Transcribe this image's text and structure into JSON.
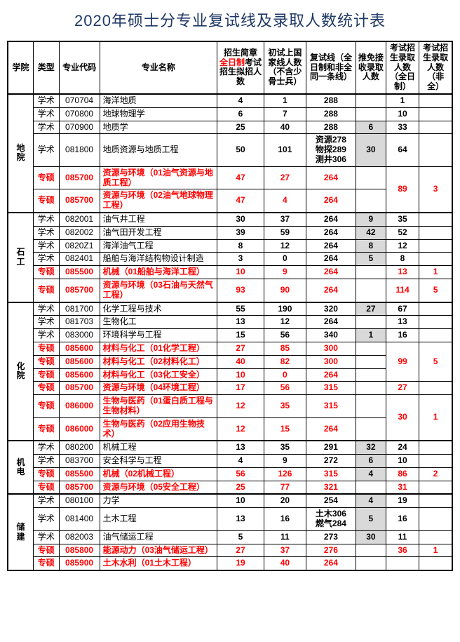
{
  "title": "2020年硕士分专业复试线及录取人数统计表",
  "headers": {
    "c1": "学院",
    "c2": "类型",
    "c3": "专业代码",
    "c4": "专业名称",
    "c5_a": "招生简章",
    "c5_b": "全日制",
    "c5_c": "考试招生拟招人数",
    "c6": "初试上国家线人数（不含少骨士兵）",
    "c7": "复试线（全日制和非全同一条线）",
    "c8": "推免接收录取人数",
    "c9": "考试招生录取人数（全日制）",
    "c10": "考试招生录取人数（非全）"
  },
  "colleges": [
    {
      "name": "地院",
      "rows": [
        {
          "type": "学术",
          "code": "070704",
          "major": "海洋地质",
          "plan": "4",
          "line": "1",
          "cut": "288",
          "tm": "",
          "ft": "1",
          "pt": "",
          "red": false
        },
        {
          "type": "学术",
          "code": "070800",
          "major": "地球物理学",
          "plan": "6",
          "line": "7",
          "cut": "288",
          "tm": "",
          "ft": "10",
          "pt": "",
          "red": false
        },
        {
          "type": "学术",
          "code": "070900",
          "major": "地质学",
          "plan": "25",
          "line": "40",
          "cut": "288",
          "tm": "6",
          "ft": "33",
          "pt": "",
          "red": false,
          "tmShade": true
        },
        {
          "type": "学术",
          "code": "081800",
          "major": "地质资源与地质工程",
          "plan": "50",
          "line": "101",
          "cut": "资源278\n物探289\n测井306",
          "tm": "30",
          "ft": "64",
          "pt": "",
          "red": false,
          "tmShade": true
        },
        {
          "type": "专硕",
          "code": "085700",
          "major": "资源与环境（01油气资源与地质工程）",
          "plan": "47",
          "line": "27",
          "cut": "264",
          "tm": "",
          "ft": "89",
          "pt": "3",
          "red": true,
          "ftSpan": 2,
          "ptSpan": 2
        },
        {
          "type": "专硕",
          "code": "085700",
          "major": "资源与环境（02油气地球物理工程）",
          "plan": "47",
          "line": "4",
          "cut": "264",
          "tm": "",
          "red": true,
          "ftSkip": true,
          "ptSkip": true
        }
      ]
    },
    {
      "name": "石工",
      "rows": [
        {
          "type": "学术",
          "code": "082001",
          "major": "油气井工程",
          "plan": "30",
          "line": "37",
          "cut": "264",
          "tm": "9",
          "ft": "35",
          "pt": "",
          "red": false,
          "tmShade": true
        },
        {
          "type": "学术",
          "code": "082002",
          "major": "油气田开发工程",
          "plan": "39",
          "line": "59",
          "cut": "264",
          "tm": "42",
          "ft": "52",
          "pt": "",
          "red": false,
          "tmShade": true
        },
        {
          "type": "学术",
          "code": "0820Z1",
          "major": "海洋油气工程",
          "plan": "8",
          "line": "12",
          "cut": "264",
          "tm": "8",
          "ft": "12",
          "pt": "",
          "red": false,
          "tmShade": true
        },
        {
          "type": "学术",
          "code": "082401",
          "major": "船舶与海洋结构物设计制造",
          "plan": "3",
          "line": "0",
          "cut": "264",
          "tm": "5",
          "ft": "8",
          "pt": "",
          "red": false,
          "tmShade": true
        },
        {
          "type": "专硕",
          "code": "085500",
          "major": "机械（01船舶与海洋工程）",
          "plan": "10",
          "line": "9",
          "cut": "264",
          "tm": "",
          "ft": "13",
          "pt": "1",
          "red": true
        },
        {
          "type": "专硕",
          "code": "085700",
          "major": "资源与环境（03石油与天然气工程）",
          "plan": "93",
          "line": "90",
          "cut": "264",
          "tm": "",
          "ft": "114",
          "pt": "5",
          "red": true
        }
      ]
    },
    {
      "name": "化院",
      "rows": [
        {
          "type": "学术",
          "code": "081700",
          "major": "化学工程与技术",
          "plan": "55",
          "line": "190",
          "cut": "320",
          "tm": "27",
          "ft": "67",
          "pt": "",
          "red": false,
          "tmShade": true
        },
        {
          "type": "学术",
          "code": "081703",
          "major": "生物化工",
          "plan": "13",
          "line": "12",
          "cut": "264",
          "tm": "",
          "ft": "13",
          "pt": "",
          "red": false
        },
        {
          "type": "学术",
          "code": "083000",
          "major": "环境科学与工程",
          "plan": "15",
          "line": "56",
          "cut": "340",
          "tm": "1",
          "ft": "16",
          "pt": "",
          "red": false,
          "tmShade": true
        },
        {
          "type": "专硕",
          "code": "085600",
          "major": "材料与化工（01化学工程）",
          "plan": "27",
          "line": "85",
          "cut": "300",
          "tm": "",
          "ft": "99",
          "pt": "5",
          "red": true,
          "ftSpan": 3,
          "ptSpan": 3
        },
        {
          "type": "专硕",
          "code": "085600",
          "major": "材料与化工（02材料化工）",
          "plan": "40",
          "line": "82",
          "cut": "300",
          "tm": "",
          "red": true,
          "ftSkip": true,
          "ptSkip": true
        },
        {
          "type": "专硕",
          "code": "085600",
          "major": "材料与化工（03化工安全）",
          "plan": "10",
          "line": "0",
          "cut": "264",
          "tm": "",
          "red": true,
          "ftSkip": true,
          "ptSkip": true
        },
        {
          "type": "专硕",
          "code": "085700",
          "major": "资源与环境（04环境工程）",
          "plan": "17",
          "line": "56",
          "cut": "315",
          "tm": "",
          "ft": "27",
          "pt": "",
          "red": true
        },
        {
          "type": "专硕",
          "code": "086000",
          "major": "生物与医药（01蛋白质工程与生物材料）",
          "plan": "12",
          "line": "35",
          "cut": "315",
          "tm": "",
          "ft": "30",
          "pt": "1",
          "red": true,
          "ftSpan": 2,
          "ptSpan": 2
        },
        {
          "type": "专硕",
          "code": "086000",
          "major": "生物与医药（02应用生物技术）",
          "plan": "12",
          "line": "15",
          "cut": "264",
          "tm": "",
          "red": true,
          "ftSkip": true,
          "ptSkip": true
        }
      ]
    },
    {
      "name": "机电",
      "rows": [
        {
          "type": "学术",
          "code": "080200",
          "major": "机械工程",
          "plan": "13",
          "line": "35",
          "cut": "291",
          "tm": "32",
          "ft": "24",
          "pt": "",
          "red": false,
          "tmShade": true
        },
        {
          "type": "学术",
          "code": "083700",
          "major": "安全科学与工程",
          "plan": "4",
          "line": "9",
          "cut": "272",
          "tm": "6",
          "ft": "10",
          "pt": "",
          "red": false,
          "tmShade": true
        },
        {
          "type": "专硕",
          "code": "085500",
          "major": "机械（02机械工程）",
          "plan": "56",
          "line": "126",
          "cut": "315",
          "tm": "4",
          "ft": "86",
          "pt": "2",
          "red": true,
          "tmShade": true
        },
        {
          "type": "专硕",
          "code": "085700",
          "major": "资源与环境（05安全工程）",
          "plan": "25",
          "line": "77",
          "cut": "321",
          "tm": "",
          "ft": "31",
          "pt": "",
          "red": true
        }
      ]
    },
    {
      "name": "储建",
      "rows": [
        {
          "type": "学术",
          "code": "080100",
          "major": "力学",
          "plan": "10",
          "line": "20",
          "cut": "254",
          "tm": "4",
          "ft": "19",
          "pt": "",
          "red": false,
          "tmShade": true
        },
        {
          "type": "学术",
          "code": "081400",
          "major": "土木工程",
          "plan": "13",
          "line": "16",
          "cut": "土木306\n燃气284",
          "tm": "5",
          "ft": "16",
          "pt": "",
          "red": false,
          "tmShade": true
        },
        {
          "type": "学术",
          "code": "082003",
          "major": "油气储运工程",
          "plan": "5",
          "line": "11",
          "cut": "273",
          "tm": "30",
          "ft": "11",
          "pt": "",
          "red": false,
          "tmShade": true
        },
        {
          "type": "专硕",
          "code": "085800",
          "major": "能源动力（03油气储运工程）",
          "plan": "27",
          "line": "37",
          "cut": "276",
          "tm": "",
          "ft": "36",
          "pt": "1",
          "red": true
        },
        {
          "type": "专硕",
          "code": "085900",
          "major": "土木水利（01土木工程）",
          "plan": "19",
          "line": "40",
          "cut": "264",
          "tm": "",
          "ft": "",
          "pt": "",
          "red": true
        }
      ]
    }
  ]
}
